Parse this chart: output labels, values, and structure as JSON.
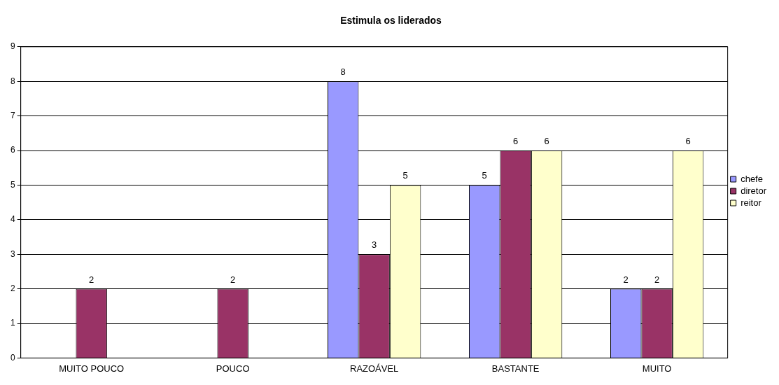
{
  "chart_data": {
    "type": "bar",
    "title": "Estimula os liderados",
    "categories": [
      "MUITO POUCO",
      "POUCO",
      "RAZOÁVEL",
      "BASTANTE",
      "MUITO"
    ],
    "series": [
      {
        "name": "chefe",
        "color": "#9999ff",
        "values": [
          null,
          null,
          8,
          5,
          2
        ]
      },
      {
        "name": "diretor",
        "color": "#993366",
        "values": [
          2,
          2,
          3,
          6,
          2
        ]
      },
      {
        "name": "reitor",
        "color": "#ffffcc",
        "values": [
          null,
          null,
          5,
          6,
          6
        ]
      }
    ],
    "ylim": [
      0,
      9
    ],
    "yticks": [
      0,
      1,
      2,
      3,
      4,
      5,
      6,
      7,
      8,
      9
    ],
    "grid": "y",
    "legend": "right",
    "data_labels": true
  }
}
